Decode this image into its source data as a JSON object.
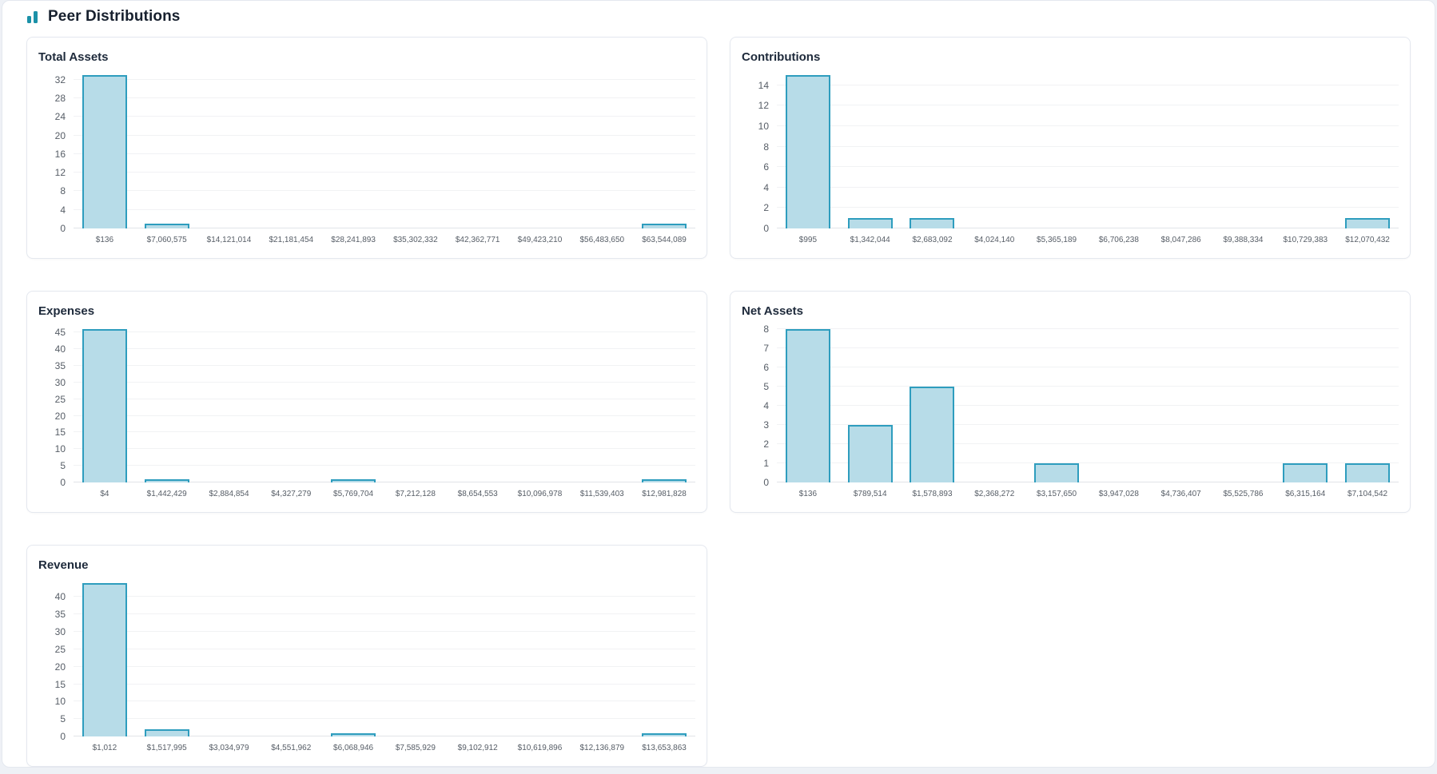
{
  "header": {
    "title": "Peer Distributions",
    "icon": "bar-chart-icon"
  },
  "colors": {
    "accent_teal": "#1b91a8",
    "bar_fill": "#b7dce8",
    "bar_border": "#2e9dbe",
    "gridline": "#f1f2f4",
    "axis_line": "#e1e4e8",
    "tick_text": "#565d66",
    "title_text": "#1e2a3b",
    "card_border": "#e4e8ef",
    "page_background": "#eef1f6"
  },
  "chart_data": [
    {
      "type": "bar",
      "title": "Total Assets",
      "categories": [
        "$136",
        "$7,060,575",
        "$14,121,014",
        "$21,181,454",
        "$28,241,893",
        "$35,302,332",
        "$42,362,771",
        "$49,423,210",
        "$56,483,650",
        "$63,544,089"
      ],
      "values": [
        33,
        1,
        0,
        0,
        0,
        0,
        0,
        0,
        0,
        1
      ],
      "yticks": [
        0,
        4,
        8,
        12,
        16,
        20,
        24,
        28,
        32
      ],
      "ylim": [
        0,
        33
      ],
      "xlabel": "",
      "ylabel": "",
      "grid": true,
      "legend": false
    },
    {
      "type": "bar",
      "title": "Contributions",
      "categories": [
        "$995",
        "$1,342,044",
        "$2,683,092",
        "$4,024,140",
        "$5,365,189",
        "$6,706,238",
        "$8,047,286",
        "$9,388,334",
        "$10,729,383",
        "$12,070,432"
      ],
      "values": [
        15,
        1,
        1,
        0,
        0,
        0,
        0,
        0,
        0,
        1
      ],
      "yticks": [
        0,
        2,
        4,
        6,
        8,
        10,
        12,
        14
      ],
      "ylim": [
        0,
        15
      ],
      "xlabel": "",
      "ylabel": "",
      "grid": true,
      "legend": false
    },
    {
      "type": "bar",
      "title": "Expenses",
      "categories": [
        "$4",
        "$1,442,429",
        "$2,884,854",
        "$4,327,279",
        "$5,769,704",
        "$7,212,128",
        "$8,654,553",
        "$10,096,978",
        "$11,539,403",
        "$12,981,828"
      ],
      "values": [
        46,
        1,
        0,
        0,
        1,
        0,
        0,
        0,
        0,
        1
      ],
      "yticks": [
        0,
        5,
        10,
        15,
        20,
        25,
        30,
        35,
        40,
        45
      ],
      "ylim": [
        0,
        46
      ],
      "xlabel": "",
      "ylabel": "",
      "grid": true,
      "legend": false
    },
    {
      "type": "bar",
      "title": "Net Assets",
      "categories": [
        "$136",
        "$789,514",
        "$1,578,893",
        "$2,368,272",
        "$3,157,650",
        "$3,947,028",
        "$4,736,407",
        "$5,525,786",
        "$6,315,164",
        "$7,104,542"
      ],
      "values": [
        8,
        3,
        5,
        0,
        1,
        0,
        0,
        0,
        1,
        1
      ],
      "yticks": [
        0,
        1,
        2,
        3,
        4,
        5,
        6,
        7,
        8
      ],
      "ylim": [
        0,
        8
      ],
      "xlabel": "",
      "ylabel": "",
      "grid": true,
      "legend": false
    },
    {
      "type": "bar",
      "title": "Revenue",
      "categories": [
        "$1,012",
        "$1,517,995",
        "$3,034,979",
        "$4,551,962",
        "$6,068,946",
        "$7,585,929",
        "$9,102,912",
        "$10,619,896",
        "$12,136,879",
        "$13,653,863"
      ],
      "values": [
        44,
        2,
        0,
        0,
        1,
        0,
        0,
        0,
        0,
        1
      ],
      "yticks": [
        0,
        5,
        10,
        15,
        20,
        25,
        30,
        35,
        40
      ],
      "ylim": [
        0,
        44
      ],
      "xlabel": "",
      "ylabel": "",
      "grid": true,
      "legend": false
    }
  ]
}
